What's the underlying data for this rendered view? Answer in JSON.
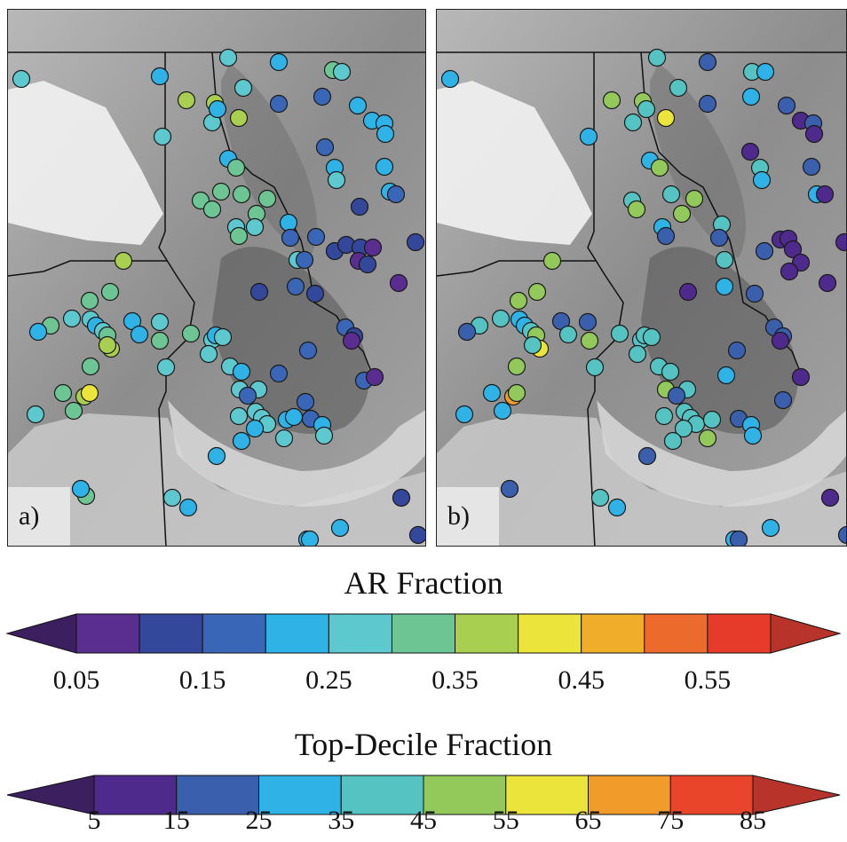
{
  "panels": [
    {
      "label": "a)"
    },
    {
      "label": "b)"
    }
  ],
  "colorbars": {
    "ar": {
      "title": "AR Fraction",
      "ticks": [
        "0.05",
        "0.15",
        "0.25",
        "0.35",
        "0.45",
        "0.55"
      ],
      "colors": [
        "#5a2d91",
        "#33479b",
        "#3a66b8",
        "#2fb2e6",
        "#5ec8cf",
        "#6cc592",
        "#a8cf4f",
        "#ebe43a",
        "#f0ad2a",
        "#ec6a2c",
        "#e63b2a"
      ],
      "under_color": "#3c1f5e",
      "over_color": "#b8332a"
    },
    "td": {
      "title": "Top-Decile Fraction",
      "ticks": [
        "5",
        "15",
        "25",
        "35",
        "45",
        "55",
        "65",
        "75",
        "85"
      ],
      "colors": [
        "#4e2a8c",
        "#3a5fad",
        "#2fb2e6",
        "#54c3c1",
        "#93c85a",
        "#ebe43a",
        "#f19b2b",
        "#e8452a"
      ],
      "under_color": "#3c1f5e",
      "over_color": "#b8332a"
    }
  },
  "stations_a": [
    [
      "#5ec8cf",
      15,
      78
    ],
    [
      "#2fb2e6",
      171,
      75
    ],
    [
      "#a8cf4f",
      201,
      102
    ],
    [
      "#a8cf4f",
      233,
      105
    ],
    [
      "#5ec8cf",
      248,
      54
    ],
    [
      "#2fb2e6",
      305,
      59
    ],
    [
      "#5ec8cf",
      265,
      88
    ],
    [
      "#3a66b8",
      305,
      106
    ],
    [
      "#6cc592",
      366,
      68
    ],
    [
      "#5ec8cf",
      376,
      70
    ],
    [
      "#3a66b8",
      354,
      98
    ],
    [
      "#2fb2e6",
      394,
      108
    ],
    [
      "#2fb2e6",
      410,
      125
    ],
    [
      "#2fb2e6",
      424,
      128
    ],
    [
      "#2fb2e6",
      425,
      140
    ],
    [
      "#5ec8cf",
      174,
      143
    ],
    [
      "#5ec8cf",
      230,
      127
    ],
    [
      "#a8cf4f",
      260,
      122
    ],
    [
      "#2fb2e6",
      236,
      112
    ],
    [
      "#3a66b8",
      357,
      155
    ],
    [
      "#2fb2e6",
      368,
      178
    ],
    [
      "#5ec8cf",
      370,
      192
    ],
    [
      "#2fb2e6",
      424,
      177
    ],
    [
      "#2fb2e6",
      430,
      205
    ],
    [
      "#3a66b8",
      437,
      208
    ],
    [
      "#2fb2e6",
      248,
      168
    ],
    [
      "#6cc592",
      257,
      178
    ],
    [
      "#6cc592",
      263,
      208
    ],
    [
      "#6cc592",
      240,
      205
    ],
    [
      "#6cc592",
      217,
      215
    ],
    [
      "#6cc592",
      230,
      225
    ],
    [
      "#6cc592",
      292,
      213
    ],
    [
      "#6cc592",
      280,
      230
    ],
    [
      "#5ec8cf",
      257,
      245
    ],
    [
      "#6cc592",
      260,
      255
    ],
    [
      "#5ec8cf",
      278,
      245
    ],
    [
      "#2fb2e6",
      316,
      240
    ],
    [
      "#3a66b8",
      318,
      257
    ],
    [
      "#3a66b8",
      347,
      256
    ],
    [
      "#33479b",
      368,
      272
    ],
    [
      "#33479b",
      396,
      222
    ],
    [
      "#33479b",
      381,
      265
    ],
    [
      "#33479b",
      397,
      268
    ],
    [
      "#5a2d91",
      411,
      268
    ],
    [
      "#5a2d91",
      395,
      283
    ],
    [
      "#33479b",
      405,
      287
    ],
    [
      "#5ec8cf",
      326,
      282
    ],
    [
      "#3a66b8",
      334,
      282
    ],
    [
      "#33479b",
      459,
      262
    ],
    [
      "#5a2d91",
      440,
      308
    ],
    [
      "#a8cf4f",
      130,
      283
    ],
    [
      "#6cc592",
      115,
      318
    ],
    [
      "#6cc592",
      92,
      328
    ],
    [
      "#5ec8cf",
      72,
      348
    ],
    [
      "#5ec8cf",
      93,
      349
    ],
    [
      "#6cc592",
      48,
      356
    ],
    [
      "#2fb2e6",
      34,
      363
    ],
    [
      "#2fb2e6",
      99,
      356
    ],
    [
      "#5ec8cf",
      107,
      362
    ],
    [
      "#6cc592",
      112,
      367
    ],
    [
      "#a8cf4f",
      116,
      382
    ],
    [
      "#a8cf4f",
      112,
      378
    ],
    [
      "#2fb2e6",
      140,
      351
    ],
    [
      "#2fb2e6",
      148,
      366
    ],
    [
      "#5ec8cf",
      171,
      352
    ],
    [
      "#6cc592",
      171,
      373
    ],
    [
      "#6cc592",
      93,
      402
    ],
    [
      "#6cc592",
      62,
      432
    ],
    [
      "#a8cf4f",
      86,
      436
    ],
    [
      "#ebe43a",
      92,
      432
    ],
    [
      "#6cc592",
      74,
      452
    ],
    [
      "#5ec8cf",
      31,
      456
    ],
    [
      "#33479b",
      283,
      318
    ],
    [
      "#3a66b8",
      324,
      312
    ],
    [
      "#33479b",
      346,
      320
    ],
    [
      "#3a66b8",
      380,
      358
    ],
    [
      "#33479b",
      390,
      368
    ],
    [
      "#5a2d91",
      387,
      373
    ],
    [
      "#3a66b8",
      338,
      384
    ],
    [
      "#3a66b8",
      401,
      418
    ],
    [
      "#5a2d91",
      413,
      414
    ],
    [
      "#6cc592",
      206,
      365
    ],
    [
      "#5ec8cf",
      230,
      372
    ],
    [
      "#2fb2e6",
      234,
      367
    ],
    [
      "#5ec8cf",
      242,
      369
    ],
    [
      "#5ec8cf",
      226,
      388
    ],
    [
      "#5ec8cf",
      178,
      403
    ],
    [
      "#5ec8cf",
      250,
      402
    ],
    [
      "#2fb2e6",
      263,
      408
    ],
    [
      "#3a66b8",
      305,
      410
    ],
    [
      "#5ec8cf",
      261,
      428
    ],
    [
      "#5ec8cf",
      282,
      428
    ],
    [
      "#3a66b8",
      270,
      435
    ],
    [
      "#3a66b8",
      335,
      442
    ],
    [
      "#5ec8cf",
      260,
      458
    ],
    [
      "#5ec8cf",
      279,
      453
    ],
    [
      "#5ec8cf",
      286,
      460
    ],
    [
      "#5ec8cf",
      292,
      467
    ],
    [
      "#2fb2e6",
      314,
      462
    ],
    [
      "#2fb2e6",
      322,
      459
    ],
    [
      "#3a66b8",
      341,
      461
    ],
    [
      "#2fb2e6",
      354,
      468
    ],
    [
      "#5ec8cf",
      356,
      480
    ],
    [
      "#2fb2e6",
      278,
      472
    ],
    [
      "#2fb2e6",
      263,
      486
    ],
    [
      "#5ec8cf",
      311,
      483
    ],
    [
      "#2fb2e6",
      235,
      503
    ],
    [
      "#6cc592",
      88,
      548
    ],
    [
      "#2fb2e6",
      82,
      540
    ],
    [
      "#5ec8cf",
      185,
      550
    ],
    [
      "#2fb2e6",
      203,
      561
    ],
    [
      "#33479b",
      443,
      550
    ],
    [
      "#2fb2e6",
      374,
      584
    ],
    [
      "#2fb2e6",
      337,
      597
    ],
    [
      "#2fb2e6",
      340,
      597
    ],
    [
      "#33479b",
      462,
      592
    ]
  ],
  "stations_b": [
    [
      "#2fb2e6",
      15,
      78
    ],
    [
      "#2fb2e6",
      171,
      143
    ],
    [
      "#93c85a",
      197,
      102
    ],
    [
      "#93c85a",
      232,
      103
    ],
    [
      "#54c3c1",
      248,
      54
    ],
    [
      "#3a5fad",
      305,
      59
    ],
    [
      "#54c3c1",
      272,
      88
    ],
    [
      "#3a5fad",
      305,
      106
    ],
    [
      "#54c3c1",
      355,
      70
    ],
    [
      "#2fb2e6",
      370,
      70
    ],
    [
      "#2fb2e6",
      354,
      98
    ],
    [
      "#3a5fad",
      394,
      108
    ],
    [
      "#4e2a8c",
      410,
      125
    ],
    [
      "#3a5fad",
      424,
      128
    ],
    [
      "#4e2a8c",
      425,
      140
    ],
    [
      "#54c3c1",
      221,
      127
    ],
    [
      "#ebe43a",
      258,
      122
    ],
    [
      "#54c3c1",
      236,
      112
    ],
    [
      "#4e2a8c",
      353,
      160
    ],
    [
      "#54c3c1",
      364,
      178
    ],
    [
      "#2fb2e6",
      366,
      192
    ],
    [
      "#3a5fad",
      422,
      177
    ],
    [
      "#2fb2e6",
      428,
      208
    ],
    [
      "#4e2a8c",
      437,
      208
    ],
    [
      "#2fb2e6",
      240,
      170
    ],
    [
      "#93c85a",
      251,
      178
    ],
    [
      "#54c3c1",
      264,
      208
    ],
    [
      "#54c3c1",
      220,
      215
    ],
    [
      "#93c85a",
      225,
      225
    ],
    [
      "#93c85a",
      290,
      213
    ],
    [
      "#93c85a",
      276,
      230
    ],
    [
      "#2fb2e6",
      254,
      245
    ],
    [
      "#3a5fad",
      258,
      255
    ],
    [
      "#54c3c1",
      321,
      242
    ],
    [
      "#3a5fad",
      318,
      257
    ],
    [
      "#4e2a8c",
      387,
      259
    ],
    [
      "#3a5fad",
      369,
      272
    ],
    [
      "#4e2a8c",
      396,
      258
    ],
    [
      "#4e2a8c",
      401,
      270
    ],
    [
      "#4e2a8c",
      410,
      285
    ],
    [
      "#4e2a8c",
      397,
      295
    ],
    [
      "#54c3c1",
      324,
      282
    ],
    [
      "#4e2a8c",
      459,
      262
    ],
    [
      "#4e2a8c",
      440,
      308
    ],
    [
      "#93c85a",
      130,
      283
    ],
    [
      "#93c85a",
      113,
      318
    ],
    [
      "#93c85a",
      92,
      328
    ],
    [
      "#54c3c1",
      72,
      348
    ],
    [
      "#2fb2e6",
      93,
      349
    ],
    [
      "#54c3c1",
      48,
      356
    ],
    [
      "#3a5fad",
      34,
      363
    ],
    [
      "#2fb2e6",
      99,
      356
    ],
    [
      "#54c3c1",
      106,
      362
    ],
    [
      "#93c85a",
      112,
      367
    ],
    [
      "#ebe43a",
      116,
      382
    ],
    [
      "#54c3c1",
      108,
      378
    ],
    [
      "#3a5fad",
      140,
      351
    ],
    [
      "#54c3c1",
      148,
      366
    ],
    [
      "#3a5fad",
      170,
      352
    ],
    [
      "#93c85a",
      172,
      373
    ],
    [
      "#93c85a",
      90,
      402
    ],
    [
      "#2fb2e6",
      62,
      432
    ],
    [
      "#f19b2b",
      86,
      436
    ],
    [
      "#93c85a",
      90,
      432
    ],
    [
      "#2fb2e6",
      74,
      452
    ],
    [
      "#2fb2e6",
      31,
      456
    ],
    [
      "#4e2a8c",
      283,
      318
    ],
    [
      "#2fb2e6",
      324,
      312
    ],
    [
      "#3a5fad",
      358,
      320
    ],
    [
      "#3a5fad",
      380,
      358
    ],
    [
      "#3a5fad",
      390,
      368
    ],
    [
      "#4e2a8c",
      387,
      373
    ],
    [
      "#3a5fad",
      338,
      384
    ],
    [
      "#4e2a8c",
      410,
      414
    ],
    [
      "#54c3c1",
      206,
      365
    ],
    [
      "#54c3c1",
      230,
      372
    ],
    [
      "#54c3c1",
      234,
      367
    ],
    [
      "#54c3c1",
      242,
      369
    ],
    [
      "#54c3c1",
      226,
      388
    ],
    [
      "#54c3c1",
      178,
      403
    ],
    [
      "#54c3c1",
      250,
      402
    ],
    [
      "#54c3c1",
      263,
      408
    ],
    [
      "#2fb2e6",
      326,
      412
    ],
    [
      "#93c85a",
      258,
      428
    ],
    [
      "#54c3c1",
      282,
      428
    ],
    [
      "#3a5fad",
      270,
      435
    ],
    [
      "#3a5fad",
      390,
      440
    ],
    [
      "#54c3c1",
      256,
      458
    ],
    [
      "#54c3c1",
      279,
      453
    ],
    [
      "#54c3c1",
      286,
      460
    ],
    [
      "#54c3c1",
      292,
      467
    ],
    [
      "#54c3c1",
      310,
      462
    ],
    [
      "#3a5fad",
      340,
      461
    ],
    [
      "#2fb2e6",
      354,
      468
    ],
    [
      "#2fb2e6",
      356,
      480
    ],
    [
      "#54c3c1",
      278,
      472
    ],
    [
      "#54c3c1",
      266,
      486
    ],
    [
      "#93c85a",
      305,
      483
    ],
    [
      "#3a5fad",
      237,
      503
    ],
    [
      "#3a5fad",
      82,
      540
    ],
    [
      "#54c3c1",
      184,
      550
    ],
    [
      "#2fb2e6",
      203,
      561
    ],
    [
      "#4e2a8c",
      443,
      550
    ],
    [
      "#2fb2e6",
      376,
      584
    ],
    [
      "#2fb2e6",
      335,
      597
    ],
    [
      "#3a5fad",
      340,
      597
    ],
    [
      "#3a5fad",
      462,
      592
    ]
  ]
}
